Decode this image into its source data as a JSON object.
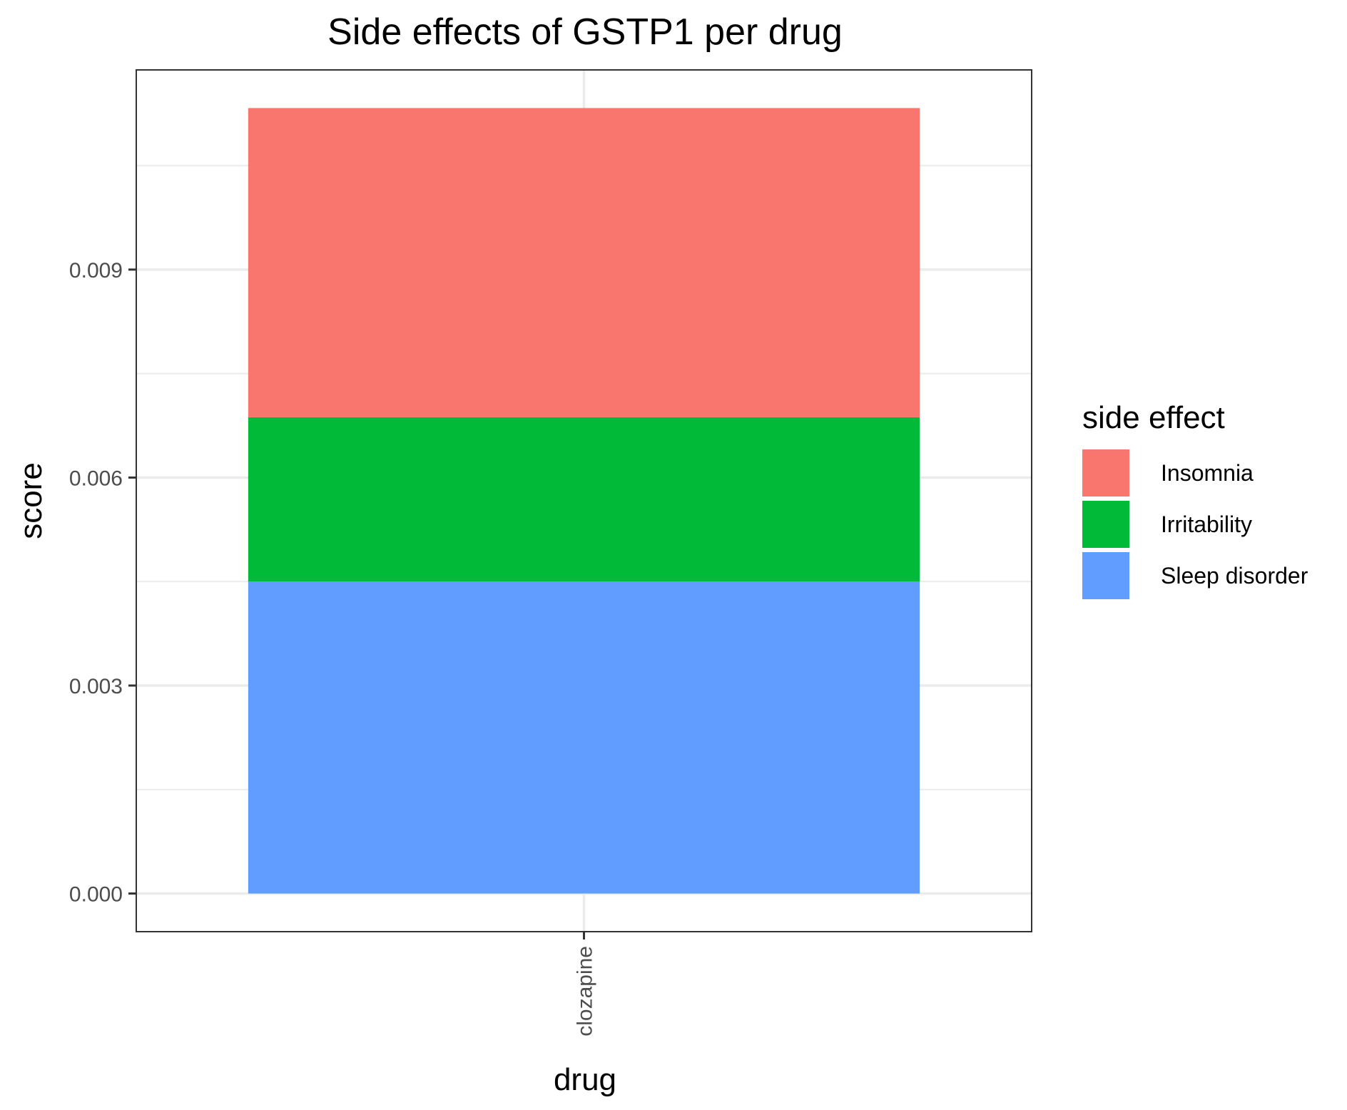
{
  "chart_data": {
    "type": "bar",
    "stacked": true,
    "title": "Side effects of GSTP1 per drug",
    "xlabel": "drug",
    "ylabel": "score",
    "categories": [
      "clozapine"
    ],
    "series": [
      {
        "name": "Sleep disorder",
        "values": [
          0.0045
        ],
        "color": "#619CFF"
      },
      {
        "name": "Irritability",
        "values": [
          0.00237
        ],
        "color": "#00BA38"
      },
      {
        "name": "Insomnia",
        "values": [
          0.00446
        ],
        "color": "#F8766D"
      }
    ],
    "stack_order": [
      "Sleep disorder",
      "Irritability",
      "Insomnia"
    ],
    "ylim": [
      -0.00055,
      0.01188
    ],
    "yticks": [
      0,
      0.003,
      0.006,
      0.009
    ],
    "ytick_labels": [
      "0.000",
      "0.003",
      "0.006",
      "0.009"
    ],
    "grid": true,
    "legend": {
      "title": "side effect",
      "position": "right",
      "entries": [
        "Insomnia",
        "Irritability",
        "Sleep disorder"
      ]
    }
  }
}
